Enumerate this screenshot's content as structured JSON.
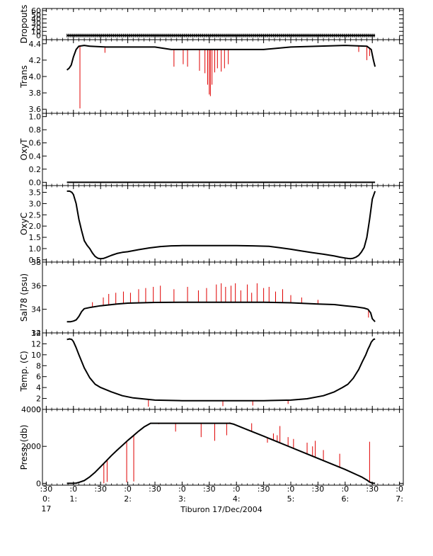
{
  "colors": {
    "axis": "#000000",
    "data": "#000000",
    "spike": "#e00000",
    "background": "#ffffff"
  },
  "x_axis": {
    "tick_labels": [
      {
        "t": 0.5,
        "top": ":30",
        "mid": "0:",
        "bot": "17"
      },
      {
        "t": 1.0,
        "top": ":0",
        "mid": "1:",
        "bot": ""
      },
      {
        "t": 1.5,
        "top": ":30",
        "mid": "",
        "bot": ""
      },
      {
        "t": 2.0,
        "top": ":0",
        "mid": "2:",
        "bot": ""
      },
      {
        "t": 2.5,
        "top": ":30",
        "mid": "",
        "bot": ""
      },
      {
        "t": 3.0,
        "top": ":0",
        "mid": "3:",
        "bot": ""
      },
      {
        "t": 3.5,
        "top": ":30",
        "mid": "",
        "bot": ""
      },
      {
        "t": 4.0,
        "top": ":0",
        "mid": "4:",
        "bot": ""
      },
      {
        "t": 4.5,
        "top": ":30",
        "mid": "",
        "bot": ""
      },
      {
        "t": 5.0,
        "top": ":0",
        "mid": "5:",
        "bot": ""
      },
      {
        "t": 5.5,
        "top": ":30",
        "mid": "",
        "bot": ""
      },
      {
        "t": 6.0,
        "top": ":0",
        "mid": "6:",
        "bot": ""
      },
      {
        "t": 6.5,
        "top": ":30",
        "mid": "",
        "bot": ""
      },
      {
        "t": 7.0,
        "top": ":0",
        "mid": "7:",
        "bot": ""
      }
    ],
    "caption": "Tiburon 17/Dec/2004"
  },
  "chart_data": [
    {
      "type": "line",
      "name": "dropouts",
      "ylabel": "Dropouts",
      "ylim": [
        -10,
        65
      ],
      "yticks": [
        0,
        10,
        20,
        30,
        40,
        50,
        60
      ],
      "series": [
        {
          "name": "Dropouts",
          "x": [
            0.88,
            6.55
          ],
          "y": [
            0,
            0
          ]
        }
      ],
      "markers": {
        "x_start": 0.88,
        "x_end": 6.55,
        "y": 0
      }
    },
    {
      "type": "line",
      "name": "trans",
      "ylabel": "Trans",
      "ylim": [
        3.55,
        4.45
      ],
      "yticks": [
        3.6,
        3.8,
        4.0,
        4.2,
        4.4
      ],
      "series": [
        {
          "name": "Trans",
          "x": [
            0.88,
            0.92,
            0.96,
            1.0,
            1.05,
            1.1,
            1.2,
            1.3,
            1.6,
            2.0,
            2.5,
            2.8,
            3.0,
            3.3,
            3.6,
            4.0,
            4.5,
            5.0,
            5.5,
            6.0,
            6.4,
            6.48,
            6.52,
            6.55
          ],
          "y": [
            4.08,
            4.1,
            4.14,
            4.24,
            4.33,
            4.37,
            4.38,
            4.37,
            4.36,
            4.36,
            4.36,
            4.33,
            4.33,
            4.33,
            4.33,
            4.33,
            4.33,
            4.36,
            4.37,
            4.38,
            4.37,
            4.33,
            4.2,
            4.12
          ]
        }
      ],
      "spikes": [
        {
          "x": 1.12,
          "y": 3.61
        },
        {
          "x": 1.58,
          "y": 4.29
        },
        {
          "x": 2.85,
          "y": 4.12
        },
        {
          "x": 3.02,
          "y": 4.15
        },
        {
          "x": 3.1,
          "y": 4.12
        },
        {
          "x": 3.32,
          "y": 4.07
        },
        {
          "x": 3.42,
          "y": 4.04
        },
        {
          "x": 3.47,
          "y": 3.9
        },
        {
          "x": 3.5,
          "y": 3.78
        },
        {
          "x": 3.52,
          "y": 3.76
        },
        {
          "x": 3.55,
          "y": 3.9
        },
        {
          "x": 3.6,
          "y": 4.05
        },
        {
          "x": 3.65,
          "y": 4.1
        },
        {
          "x": 3.72,
          "y": 4.06
        },
        {
          "x": 3.78,
          "y": 4.1
        },
        {
          "x": 3.85,
          "y": 4.15
        },
        {
          "x": 6.25,
          "y": 4.3
        },
        {
          "x": 6.4,
          "y": 4.2
        },
        {
          "x": 6.45,
          "y": 4.25
        }
      ]
    },
    {
      "type": "line",
      "name": "oxyt",
      "ylabel": "OxyT",
      "ylim": [
        -0.05,
        1.05
      ],
      "yticks": [
        0.0,
        0.2,
        0.4,
        0.6,
        0.8,
        1.0
      ],
      "series": [
        {
          "name": "OxyT",
          "x": [
            0.88,
            6.55
          ],
          "y": [
            0,
            0
          ]
        }
      ]
    },
    {
      "type": "line",
      "name": "oxyc",
      "ylabel": "OxyC",
      "ylim": [
        0.4,
        3.8
      ],
      "yticks": [
        0.5,
        1.0,
        1.5,
        2.0,
        2.5,
        3.0,
        3.5
      ],
      "series": [
        {
          "name": "OxyC",
          "x": [
            0.88,
            0.93,
            0.97,
            1.0,
            1.05,
            1.1,
            1.15,
            1.2,
            1.25,
            1.3,
            1.35,
            1.4,
            1.45,
            1.5,
            1.55,
            1.6,
            1.7,
            1.8,
            1.9,
            2.0,
            2.2,
            2.4,
            2.6,
            2.8,
            3.0,
            3.5,
            4.0,
            4.3,
            4.6,
            4.8,
            5.0,
            5.2,
            5.4,
            5.6,
            5.8,
            5.9,
            6.0,
            6.05,
            6.1,
            6.15,
            6.2,
            6.25,
            6.3,
            6.35,
            6.4,
            6.45,
            6.5,
            6.55
          ],
          "y": [
            3.55,
            3.55,
            3.5,
            3.4,
            3.0,
            2.3,
            1.8,
            1.35,
            1.15,
            1.0,
            0.8,
            0.65,
            0.57,
            0.55,
            0.56,
            0.6,
            0.7,
            0.78,
            0.83,
            0.86,
            0.95,
            1.03,
            1.09,
            1.12,
            1.13,
            1.13,
            1.13,
            1.12,
            1.1,
            1.04,
            0.97,
            0.89,
            0.82,
            0.75,
            0.67,
            0.62,
            0.58,
            0.56,
            0.55,
            0.57,
            0.62,
            0.7,
            0.85,
            1.05,
            1.5,
            2.3,
            3.2,
            3.55
          ]
        }
      ]
    },
    {
      "type": "line",
      "name": "sal78",
      "ylabel": "Sal78 (psu)",
      "ylim": [
        32,
        38
      ],
      "yticks": [
        32,
        34,
        36,
        38
      ],
      "series": [
        {
          "name": "Sal78",
          "x": [
            0.88,
            0.95,
            1.0,
            1.05,
            1.1,
            1.15,
            1.2,
            1.3,
            1.5,
            1.8,
            2.0,
            2.5,
            3.0,
            3.5,
            4.0,
            4.5,
            5.0,
            5.5,
            5.8,
            6.0,
            6.2,
            6.35,
            6.42,
            6.47,
            6.5,
            6.55
          ],
          "y": [
            32.95,
            32.95,
            33.0,
            33.1,
            33.4,
            33.8,
            34.05,
            34.15,
            34.3,
            34.45,
            34.52,
            34.58,
            34.6,
            34.6,
            34.6,
            34.6,
            34.55,
            34.45,
            34.4,
            34.3,
            34.2,
            34.1,
            34.0,
            33.7,
            33.2,
            32.95
          ]
        }
      ],
      "spikes": [
        {
          "x": 1.35,
          "y": 34.6
        },
        {
          "x": 1.55,
          "y": 35.0
        },
        {
          "x": 1.65,
          "y": 35.3
        },
        {
          "x": 1.78,
          "y": 35.4
        },
        {
          "x": 1.92,
          "y": 35.5
        },
        {
          "x": 2.05,
          "y": 35.4
        },
        {
          "x": 2.2,
          "y": 35.7
        },
        {
          "x": 2.33,
          "y": 35.8
        },
        {
          "x": 2.47,
          "y": 35.9
        },
        {
          "x": 2.6,
          "y": 36.0
        },
        {
          "x": 2.85,
          "y": 35.7
        },
        {
          "x": 3.1,
          "y": 35.9
        },
        {
          "x": 3.3,
          "y": 35.6
        },
        {
          "x": 3.45,
          "y": 35.8
        },
        {
          "x": 3.63,
          "y": 36.1
        },
        {
          "x": 3.72,
          "y": 36.2
        },
        {
          "x": 3.8,
          "y": 35.9
        },
        {
          "x": 3.9,
          "y": 36.0
        },
        {
          "x": 3.98,
          "y": 36.2
        },
        {
          "x": 4.08,
          "y": 35.6
        },
        {
          "x": 4.2,
          "y": 36.1
        },
        {
          "x": 4.28,
          "y": 35.4
        },
        {
          "x": 4.38,
          "y": 36.2
        },
        {
          "x": 4.5,
          "y": 35.8
        },
        {
          "x": 4.6,
          "y": 35.9
        },
        {
          "x": 4.72,
          "y": 35.5
        },
        {
          "x": 4.85,
          "y": 35.7
        },
        {
          "x": 5.0,
          "y": 35.2
        },
        {
          "x": 5.2,
          "y": 35.0
        },
        {
          "x": 5.5,
          "y": 34.8
        },
        {
          "x": 6.1,
          "y": 34.3
        },
        {
          "x": 6.43,
          "y": 33.3
        }
      ]
    },
    {
      "type": "line",
      "name": "temp",
      "ylabel": "Temp. (C)",
      "ylim": [
        0,
        14
      ],
      "yticks": [
        0,
        2,
        4,
        6,
        8,
        10,
        12,
        14
      ],
      "series": [
        {
          "name": "Temp",
          "x": [
            0.88,
            0.93,
            0.97,
            1.0,
            1.05,
            1.1,
            1.15,
            1.2,
            1.3,
            1.4,
            1.5,
            1.7,
            1.9,
            2.1,
            2.5,
            3.0,
            3.5,
            4.0,
            4.5,
            5.0,
            5.3,
            5.6,
            5.8,
            5.95,
            6.05,
            6.15,
            6.25,
            6.32,
            6.38,
            6.42,
            6.45,
            6.48,
            6.52,
            6.55
          ],
          "y": [
            12.8,
            12.9,
            12.8,
            12.4,
            11.3,
            10.0,
            8.8,
            7.6,
            5.8,
            4.6,
            4.0,
            3.2,
            2.5,
            2.1,
            1.7,
            1.6,
            1.6,
            1.6,
            1.6,
            1.7,
            1.95,
            2.5,
            3.2,
            4.0,
            4.6,
            5.7,
            7.3,
            8.8,
            10.0,
            11.0,
            11.6,
            12.3,
            12.8,
            12.9
          ]
        }
      ],
      "spikes": [
        {
          "x": 2.38,
          "y": 0.5
        },
        {
          "x": 3.75,
          "y": 0.6
        },
        {
          "x": 4.3,
          "y": 0.7
        },
        {
          "x": 4.95,
          "y": 1.0
        }
      ]
    },
    {
      "type": "line",
      "name": "press",
      "ylabel": "Press. (db)",
      "ylim": [
        -100,
        4000
      ],
      "yticks": [
        0,
        2000,
        4000
      ],
      "series": [
        {
          "name": "Press",
          "x": [
            0.88,
            0.95,
            1.0,
            1.05,
            1.1,
            1.2,
            1.3,
            1.4,
            1.5,
            1.6,
            1.7,
            1.8,
            1.9,
            2.0,
            2.1,
            2.2,
            2.3,
            2.42,
            2.5,
            3.0,
            3.5,
            3.88,
            3.95,
            4.2,
            4.5,
            5.0,
            5.5,
            6.0,
            6.3,
            6.4,
            6.45,
            6.5,
            6.55
          ],
          "y": [
            0,
            0,
            0,
            10,
            50,
            150,
            350,
            600,
            900,
            1200,
            1500,
            1780,
            2050,
            2320,
            2570,
            2820,
            3050,
            3250,
            3250,
            3250,
            3250,
            3250,
            3200,
            2900,
            2550,
            1950,
            1350,
            750,
            350,
            180,
            70,
            10,
            0
          ]
        }
      ],
      "spikes": [
        {
          "x": 1.56,
          "y": 0
        },
        {
          "x": 1.62,
          "y": 80
        },
        {
          "x": 1.98,
          "y": 50
        },
        {
          "x": 2.11,
          "y": 100
        },
        {
          "x": 2.15,
          "y": 2700
        },
        {
          "x": 2.4,
          "y": 3200
        },
        {
          "x": 2.57,
          "y": 3200
        },
        {
          "x": 2.88,
          "y": 2800
        },
        {
          "x": 2.92,
          "y": 3250
        },
        {
          "x": 3.27,
          "y": 3250
        },
        {
          "x": 3.35,
          "y": 2500
        },
        {
          "x": 3.6,
          "y": 2300
        },
        {
          "x": 3.82,
          "y": 2600
        },
        {
          "x": 3.88,
          "y": 3300
        },
        {
          "x": 4.28,
          "y": 3250
        },
        {
          "x": 4.57,
          "y": 2200
        },
        {
          "x": 4.68,
          "y": 2700
        },
        {
          "x": 4.75,
          "y": 2600
        },
        {
          "x": 4.8,
          "y": 3100
        },
        {
          "x": 4.95,
          "y": 2500
        },
        {
          "x": 5.05,
          "y": 2400
        },
        {
          "x": 5.3,
          "y": 2200
        },
        {
          "x": 5.4,
          "y": 2000
        },
        {
          "x": 5.45,
          "y": 2300
        },
        {
          "x": 5.6,
          "y": 1800
        },
        {
          "x": 5.9,
          "y": 1600
        },
        {
          "x": 6.45,
          "y": 2250
        }
      ]
    }
  ]
}
